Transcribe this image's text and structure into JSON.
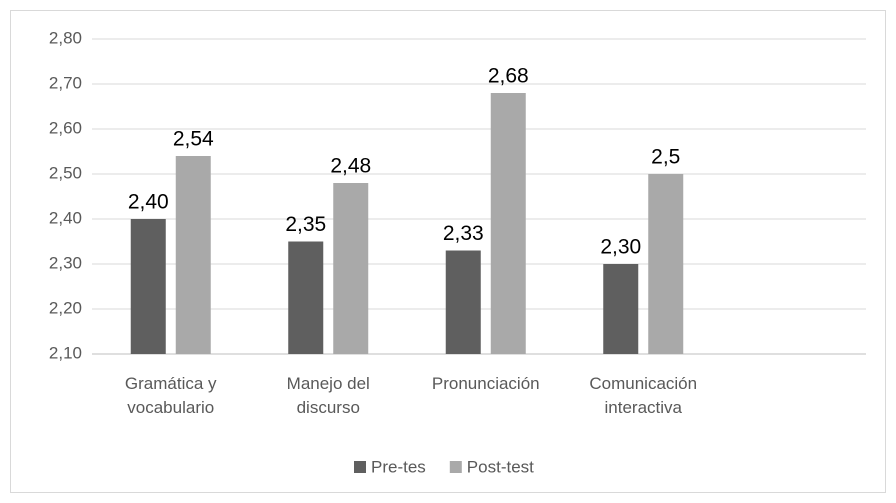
{
  "chart_data": {
    "type": "bar",
    "categories": [
      "Gramática y vocabulario",
      "Manejo del discurso",
      "Pronunciación",
      "Comunicación interactiva"
    ],
    "series": [
      {
        "name": "Pre-tes",
        "color": "#5f5f5f",
        "values": [
          2.4,
          2.35,
          2.33,
          2.3
        ],
        "value_labels": [
          "2,40",
          "2,35",
          "2,33",
          "2,30"
        ]
      },
      {
        "name": "Post-test",
        "color": "#a9a9a9",
        "values": [
          2.54,
          2.48,
          2.68,
          2.5
        ],
        "value_labels": [
          "2,54",
          "2,48",
          "2,68",
          "2,5"
        ]
      }
    ],
    "ylim": [
      2.1,
      2.8
    ],
    "yticks": [
      {
        "value": 2.1,
        "label": "2,10"
      },
      {
        "value": 2.2,
        "label": "2,20"
      },
      {
        "value": 2.3,
        "label": "2,30"
      },
      {
        "value": 2.4,
        "label": "2,40"
      },
      {
        "value": 2.5,
        "label": "2,50"
      },
      {
        "value": 2.6,
        "label": "2,60"
      },
      {
        "value": 2.7,
        "label": "2,70"
      },
      {
        "value": 2.8,
        "label": "2,80"
      }
    ],
    "grid": true,
    "legend": "bottom"
  }
}
